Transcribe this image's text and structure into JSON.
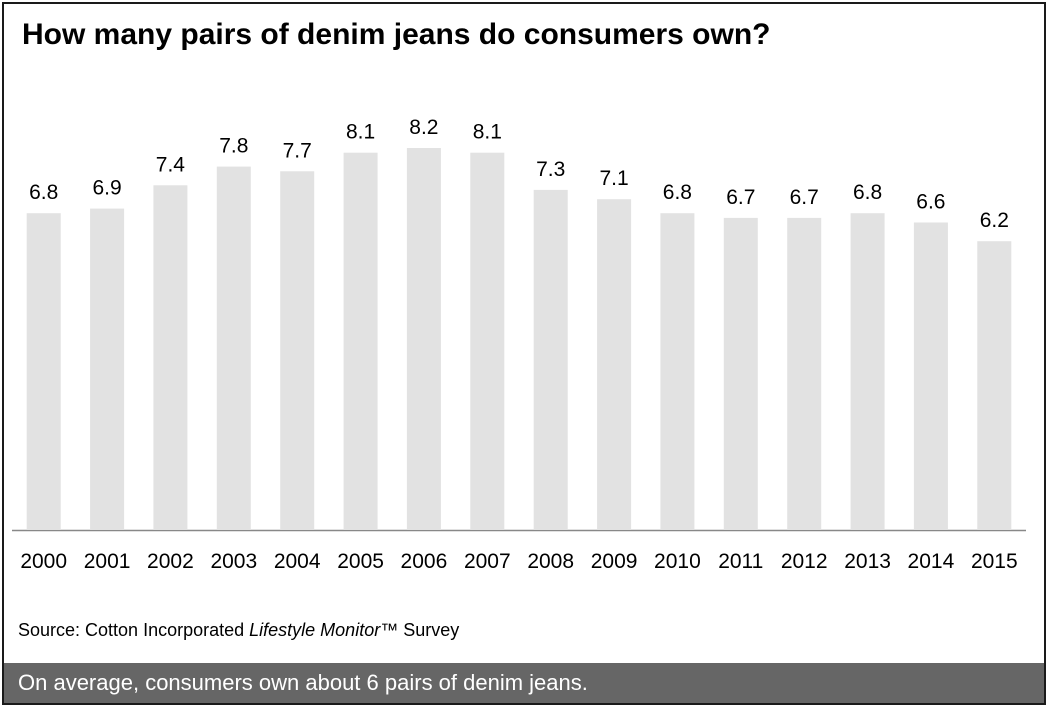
{
  "title": "How many pairs of denim jeans do consumers own?",
  "source": {
    "prefix": "Source: Cotton Incorporated ",
    "italic": "Lifestyle Monitor",
    "tm": "™",
    "suffix": " Survey"
  },
  "footer_text": "On average, consumers own about 6 pairs of denim jeans.",
  "colors": {
    "bar": "#e2e2e2",
    "baseline": "#888888",
    "footer_bg": "#666666",
    "text": "#000000"
  },
  "chart_data": {
    "type": "bar",
    "title": "How many pairs of denim jeans do consumers own?",
    "xlabel": "",
    "ylabel": "",
    "ylim": [
      0,
      8.2
    ],
    "grid": false,
    "legend": "none",
    "categories": [
      "2000",
      "2001",
      "2002",
      "2003",
      "2004",
      "2005",
      "2006",
      "2007",
      "2008",
      "2009",
      "2010",
      "2011",
      "2012",
      "2013",
      "2014",
      "2015"
    ],
    "values": [
      6.8,
      6.9,
      7.4,
      7.8,
      7.7,
      8.1,
      8.2,
      8.1,
      7.3,
      7.1,
      6.8,
      6.7,
      6.7,
      6.8,
      6.6,
      6.2
    ],
    "labels": [
      "6.8",
      "6.9",
      "7.4",
      "7.8",
      "7.7",
      "8.1",
      "8.2",
      "8.1",
      "7.3",
      "7.1",
      "6.8",
      "6.7",
      "6.7",
      "6.8",
      "6.6",
      "6.2"
    ]
  }
}
